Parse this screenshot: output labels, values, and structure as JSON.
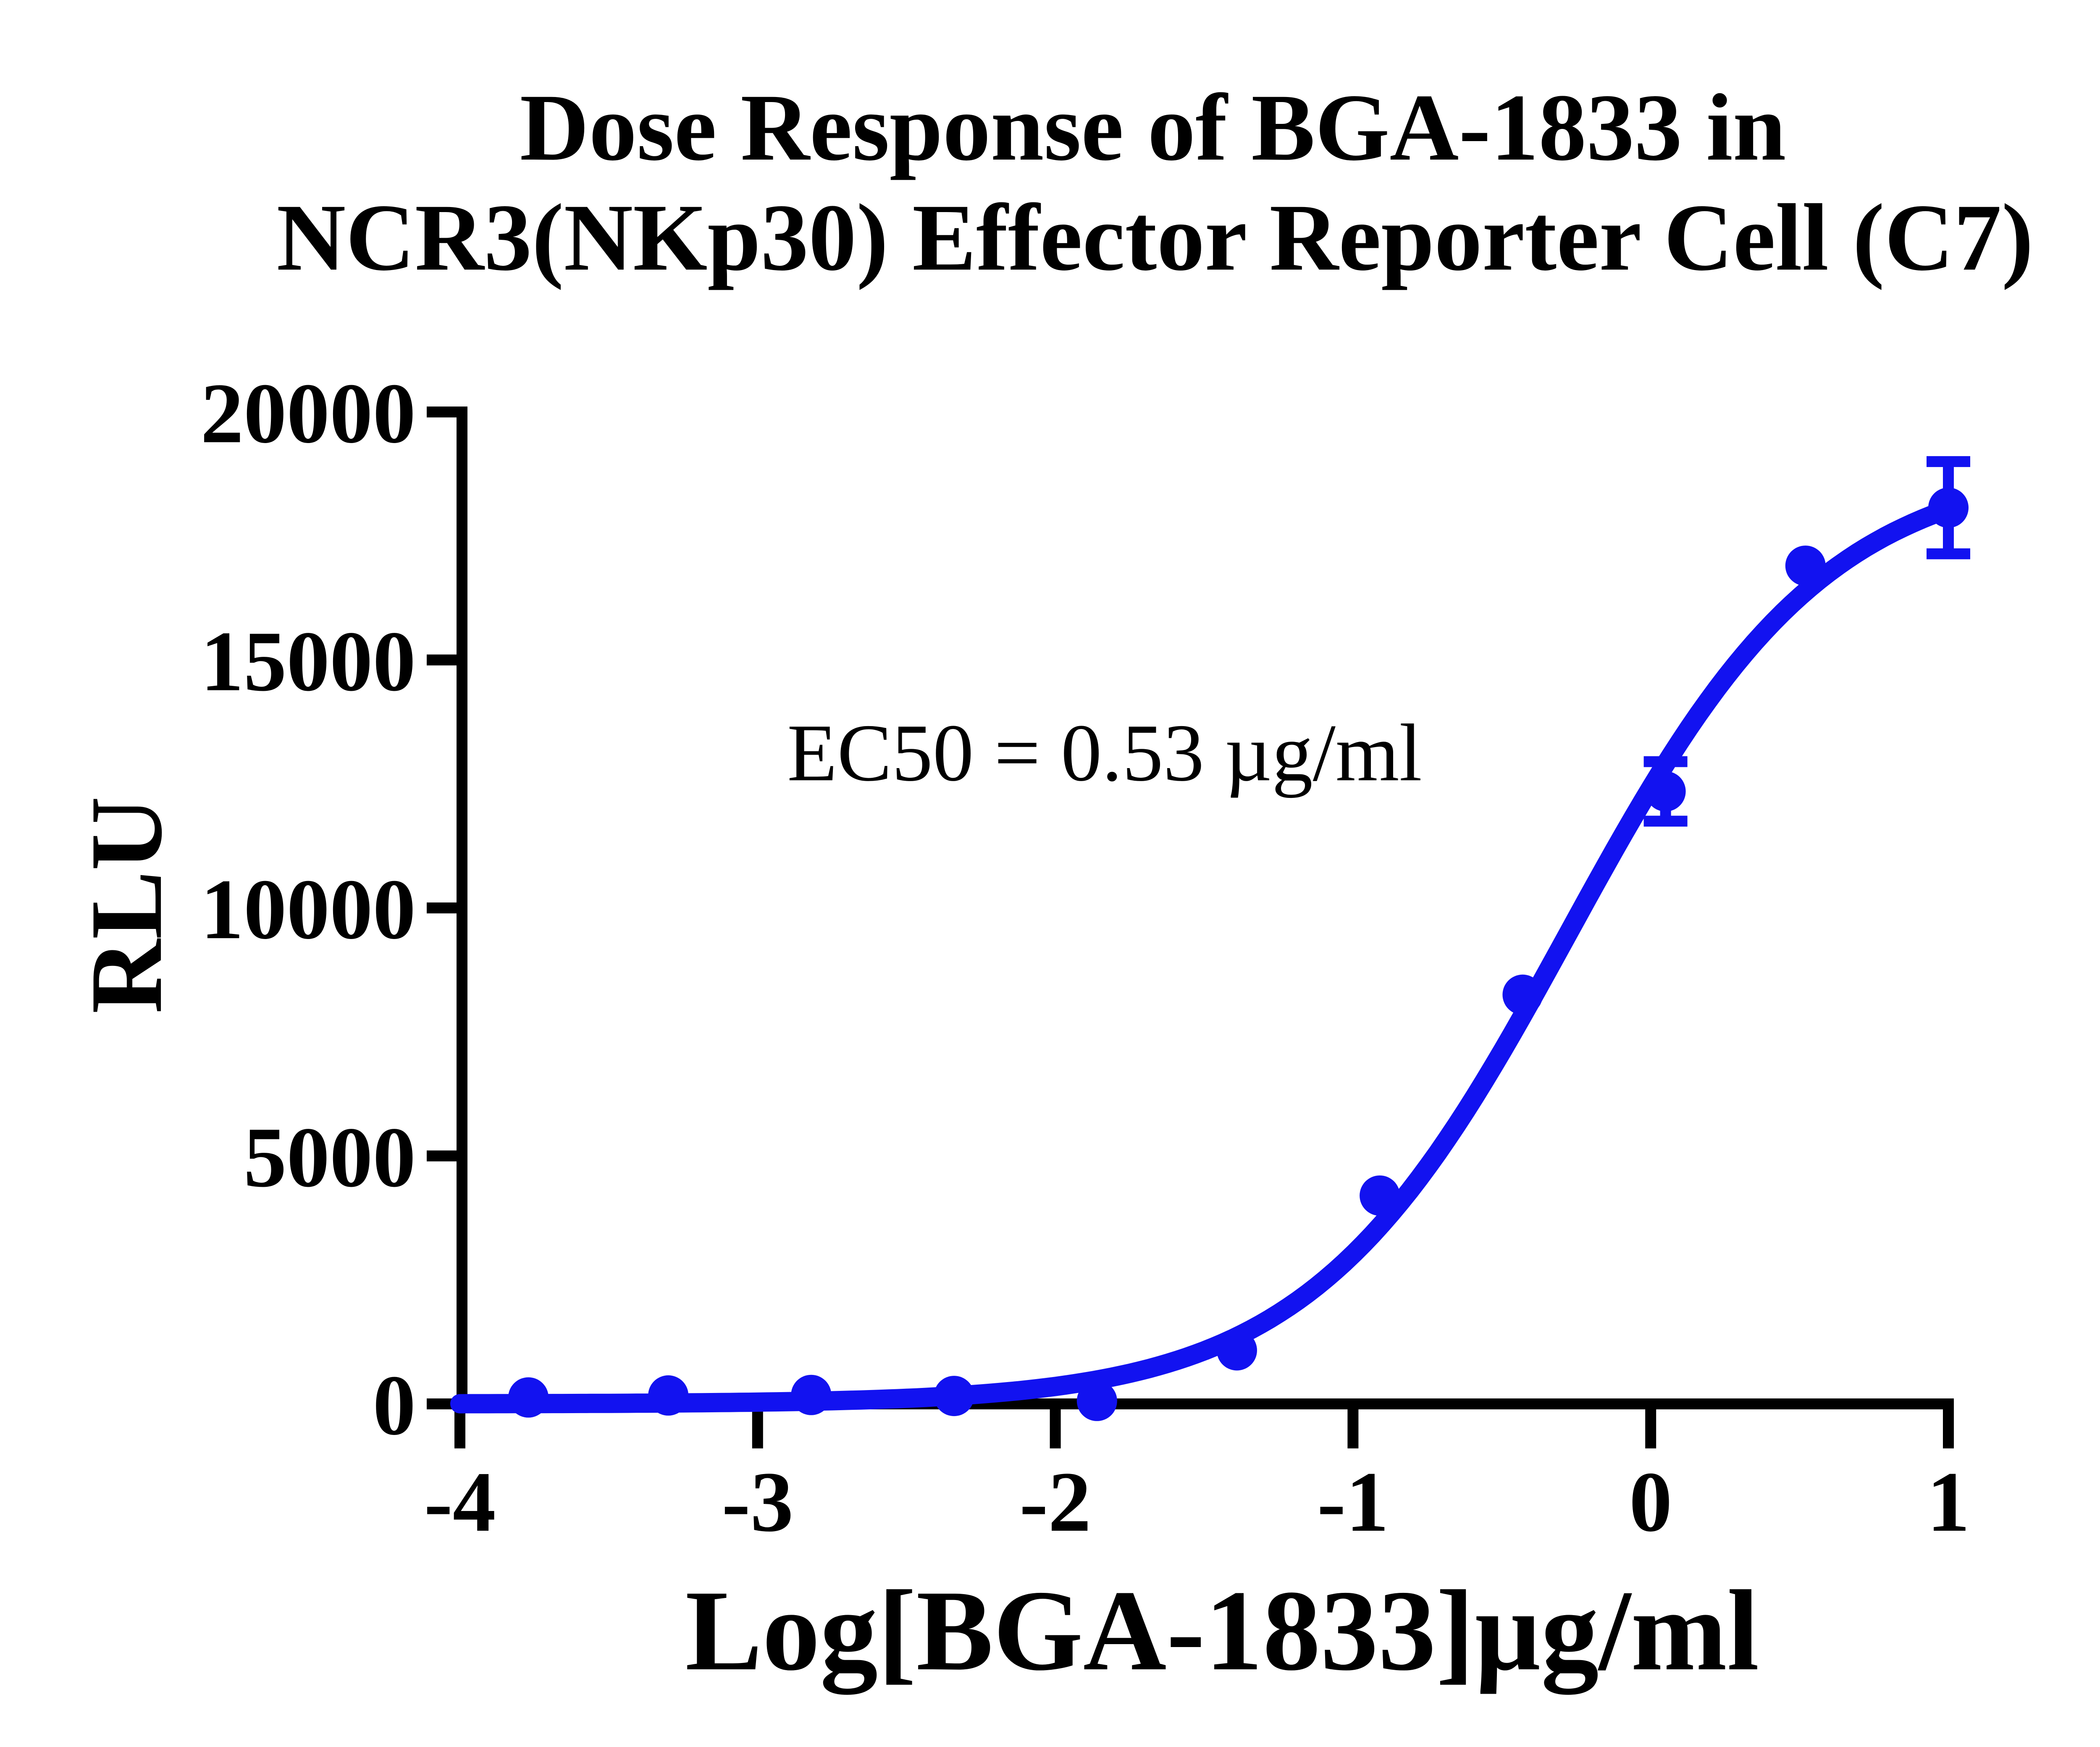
{
  "figure": {
    "title_line1": "Dose Response of BGA-1833 in",
    "title_line2": "NCR3(NKp30) Effector Reporter Cell (C7)",
    "annotation": "EC50 = 0.53 µg/ml",
    "colors": {
      "series_blue": "#1212f0",
      "axis_black": "#000000",
      "background": "#ffffff"
    }
  },
  "chart_data": {
    "type": "scatter",
    "title": "Dose Response of BGA-1833 in NCR3(NKp30) Effector Reporter Cell (C7)",
    "xlabel": "Log[BGA-1833]µg/ml",
    "ylabel": "RLU",
    "annotation": "EC50 = 0.53 µg/ml",
    "ec50_ug_per_ml": 0.53,
    "xlim": [
      -4,
      1
    ],
    "ylim": [
      0,
      20000
    ],
    "xticks": [
      -4,
      -3,
      -2,
      -1,
      0,
      1
    ],
    "yticks": [
      0,
      5000,
      10000,
      15000,
      20000
    ],
    "grid": false,
    "legend_position": "none",
    "series": [
      {
        "name": "BGA-1833",
        "color": "#1212f0",
        "marker": "circle",
        "points": [
          {
            "x": -3.77,
            "y": 130
          },
          {
            "x": -3.3,
            "y": 170
          },
          {
            "x": -2.82,
            "y": 180
          },
          {
            "x": -2.34,
            "y": 160
          },
          {
            "x": -1.86,
            "y": 60
          },
          {
            "x": -1.39,
            "y": 1080
          },
          {
            "x": -0.91,
            "y": 4200
          },
          {
            "x": -0.43,
            "y": 8250
          },
          {
            "x": 0.05,
            "y": 12350,
            "err": 600
          },
          {
            "x": 0.52,
            "y": 16900
          },
          {
            "x": 1.0,
            "y": 18070,
            "err": 930
          }
        ]
      }
    ],
    "curve_fit": {
      "model": "four_parameter_logistic",
      "bottom": 0,
      "top": 19000,
      "logEC50": -0.2757,
      "hill": 1.0,
      "x_start": -4,
      "x_end": 1.005
    }
  }
}
